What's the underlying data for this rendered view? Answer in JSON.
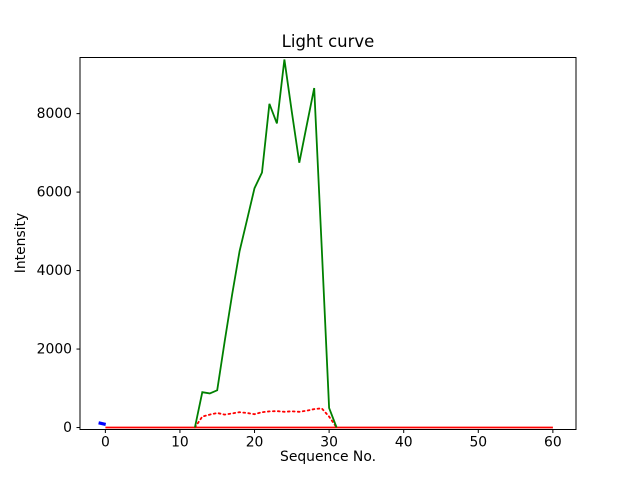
{
  "figure": {
    "background": "#ffffff"
  },
  "chart_data": {
    "type": "line",
    "title": "Light curve",
    "xlabel": "Sequence No.",
    "ylabel": "Intensity",
    "xlim": [
      -3.4,
      63.1
    ],
    "ylim": [
      -50,
      9430
    ],
    "xticks": [
      0,
      10,
      20,
      30,
      40,
      50,
      60
    ],
    "yticks": [
      0,
      2000,
      4000,
      6000,
      8000
    ],
    "grid": false,
    "legend": "none",
    "spine_color": "#000000",
    "series": [
      {
        "name": "zero-baseline",
        "color": "#ff0000",
        "style": "solid",
        "linewidth": 1.8,
        "points": [
          [
            0,
            0
          ],
          [
            60,
            0
          ]
        ]
      },
      {
        "name": "secondary-intensity-dotted",
        "color": "#ff0000",
        "style": "dotted",
        "linewidth": 1.8,
        "points": [
          [
            12,
            0
          ],
          [
            13,
            280
          ],
          [
            14,
            330
          ],
          [
            15,
            370
          ],
          [
            16,
            330
          ],
          [
            17,
            360
          ],
          [
            18,
            390
          ],
          [
            19,
            370
          ],
          [
            20,
            340
          ],
          [
            21,
            390
          ],
          [
            22,
            410
          ],
          [
            23,
            420
          ],
          [
            24,
            400
          ],
          [
            25,
            415
          ],
          [
            26,
            400
          ],
          [
            27,
            430
          ],
          [
            28,
            470
          ],
          [
            29,
            490
          ],
          [
            30,
            280
          ],
          [
            31,
            0
          ]
        ]
      },
      {
        "name": "main-intensity",
        "color": "#008000",
        "style": "solid",
        "linewidth": 1.8,
        "points": [
          [
            12,
            0
          ],
          [
            13,
            900
          ],
          [
            14,
            870
          ],
          [
            15,
            950
          ],
          [
            16,
            2200
          ],
          [
            17,
            3400
          ],
          [
            18,
            4500
          ],
          [
            19,
            5300
          ],
          [
            20,
            6100
          ],
          [
            21,
            6500
          ],
          [
            22,
            8250
          ],
          [
            23,
            7750
          ],
          [
            24,
            9380
          ],
          [
            25,
            8050
          ],
          [
            26,
            6750
          ],
          [
            27,
            7700
          ],
          [
            28,
            8650
          ],
          [
            29,
            4600
          ],
          [
            30,
            500
          ],
          [
            31,
            0
          ]
        ]
      },
      {
        "name": "start-marker",
        "color": "#0000ff",
        "style": "solid",
        "linewidth": 3.2,
        "points": [
          [
            -0.9,
            120
          ],
          [
            0.05,
            80
          ]
        ]
      }
    ]
  }
}
